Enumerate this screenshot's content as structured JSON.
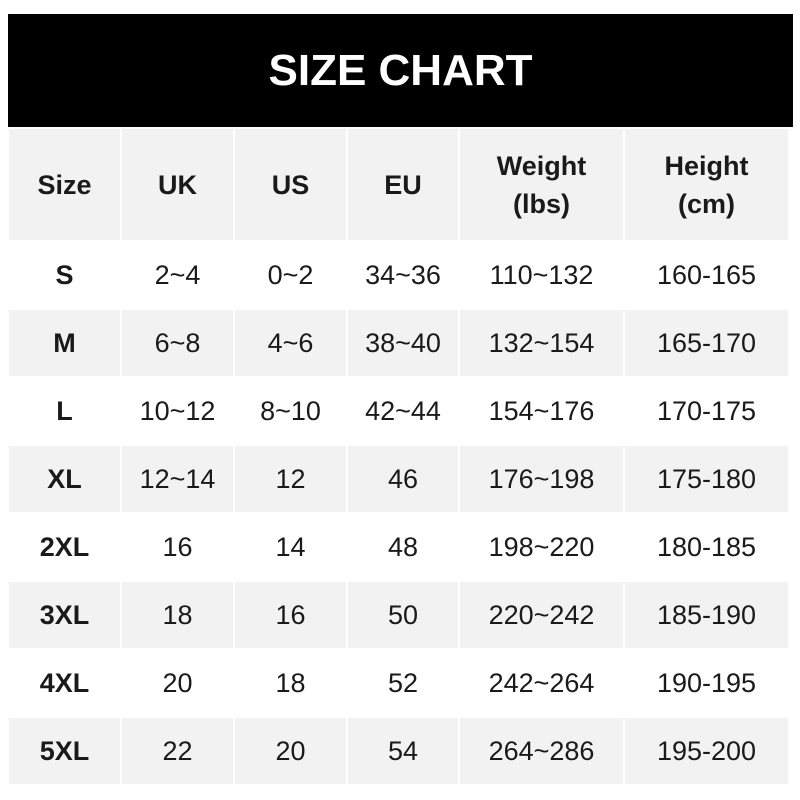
{
  "title": "SIZE CHART",
  "headers": [
    "Size",
    "UK",
    "US",
    "EU",
    "Weight\n(lbs)",
    "Height\n(cm)"
  ],
  "header_lines": [
    [
      "Size"
    ],
    [
      "UK"
    ],
    [
      "US"
    ],
    [
      "EU"
    ],
    [
      "Weight",
      "(lbs)"
    ],
    [
      "Height",
      "(cm)"
    ]
  ],
  "rows": [
    [
      "S",
      "2~4",
      "0~2",
      "34~36",
      "110~132",
      "160-165"
    ],
    [
      "M",
      "6~8",
      "4~6",
      "38~40",
      "132~154",
      "165-170"
    ],
    [
      "L",
      "10~12",
      "8~10",
      "42~44",
      "154~176",
      "170-175"
    ],
    [
      "XL",
      "12~14",
      "12",
      "46",
      "176~198",
      "175-180"
    ],
    [
      "2XL",
      "16",
      "14",
      "48",
      "198~220",
      "180-185"
    ],
    [
      "3XL",
      "18",
      "16",
      "50",
      "220~242",
      "185-190"
    ],
    [
      "4XL",
      "20",
      "18",
      "52",
      "242~264",
      "190-195"
    ],
    [
      "5XL",
      "22",
      "20",
      "54",
      "264~286",
      "195-200"
    ]
  ],
  "colors": {
    "title_bg": "#000000",
    "stripe": "#f2f2f2",
    "text": "#1a1a1a"
  }
}
